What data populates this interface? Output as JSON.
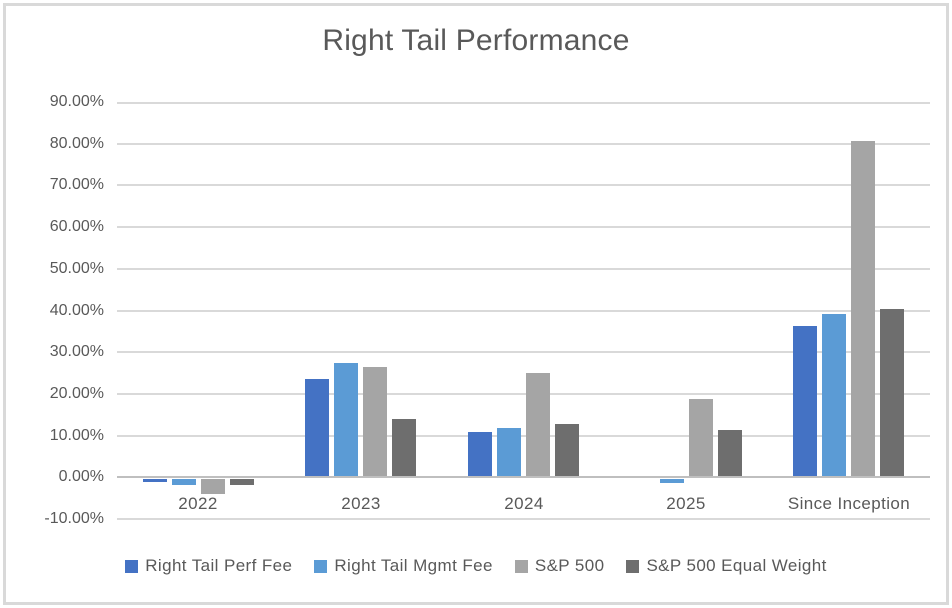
{
  "chart_data": {
    "type": "bar",
    "title": "Right Tail Performance",
    "categories": [
      "2022",
      "2023",
      "2024",
      "2025",
      "Since Inception"
    ],
    "series": [
      {
        "name": "Right Tail Perf Fee",
        "color": "#4472C4",
        "values": [
          -0.7,
          23.5,
          10.8,
          0.0,
          36.2
        ]
      },
      {
        "name": "Right Tail Mgmt Fee",
        "color": "#5B9BD5",
        "values": [
          -1.5,
          27.3,
          11.8,
          -1.0,
          39.2
        ]
      },
      {
        "name": "S&P 500",
        "color": "#A5A5A5",
        "values": [
          -3.5,
          26.3,
          24.9,
          18.6,
          80.5
        ]
      },
      {
        "name": "S&P 500 Equal Weight",
        "color": "#6E6E6E",
        "values": [
          -1.5,
          13.8,
          12.8,
          11.2,
          40.2
        ]
      }
    ],
    "ylim": [
      -10,
      90
    ],
    "ytick_step": 10,
    "ytick_labels": [
      "90.00%",
      "80.00%",
      "70.00%",
      "60.00%",
      "50.00%",
      "40.00%",
      "30.00%",
      "20.00%",
      "10.00%",
      "0.00%",
      "-10.00%"
    ],
    "grid": true,
    "legend_position": "bottom",
    "colors": {
      "title_text": "#595959",
      "axis_text": "#595959",
      "gridline": "#D9D9D9",
      "axis_line": "#BFBFBF",
      "background": "#FFFFFF",
      "frame_border": "#D9D9D9"
    }
  }
}
